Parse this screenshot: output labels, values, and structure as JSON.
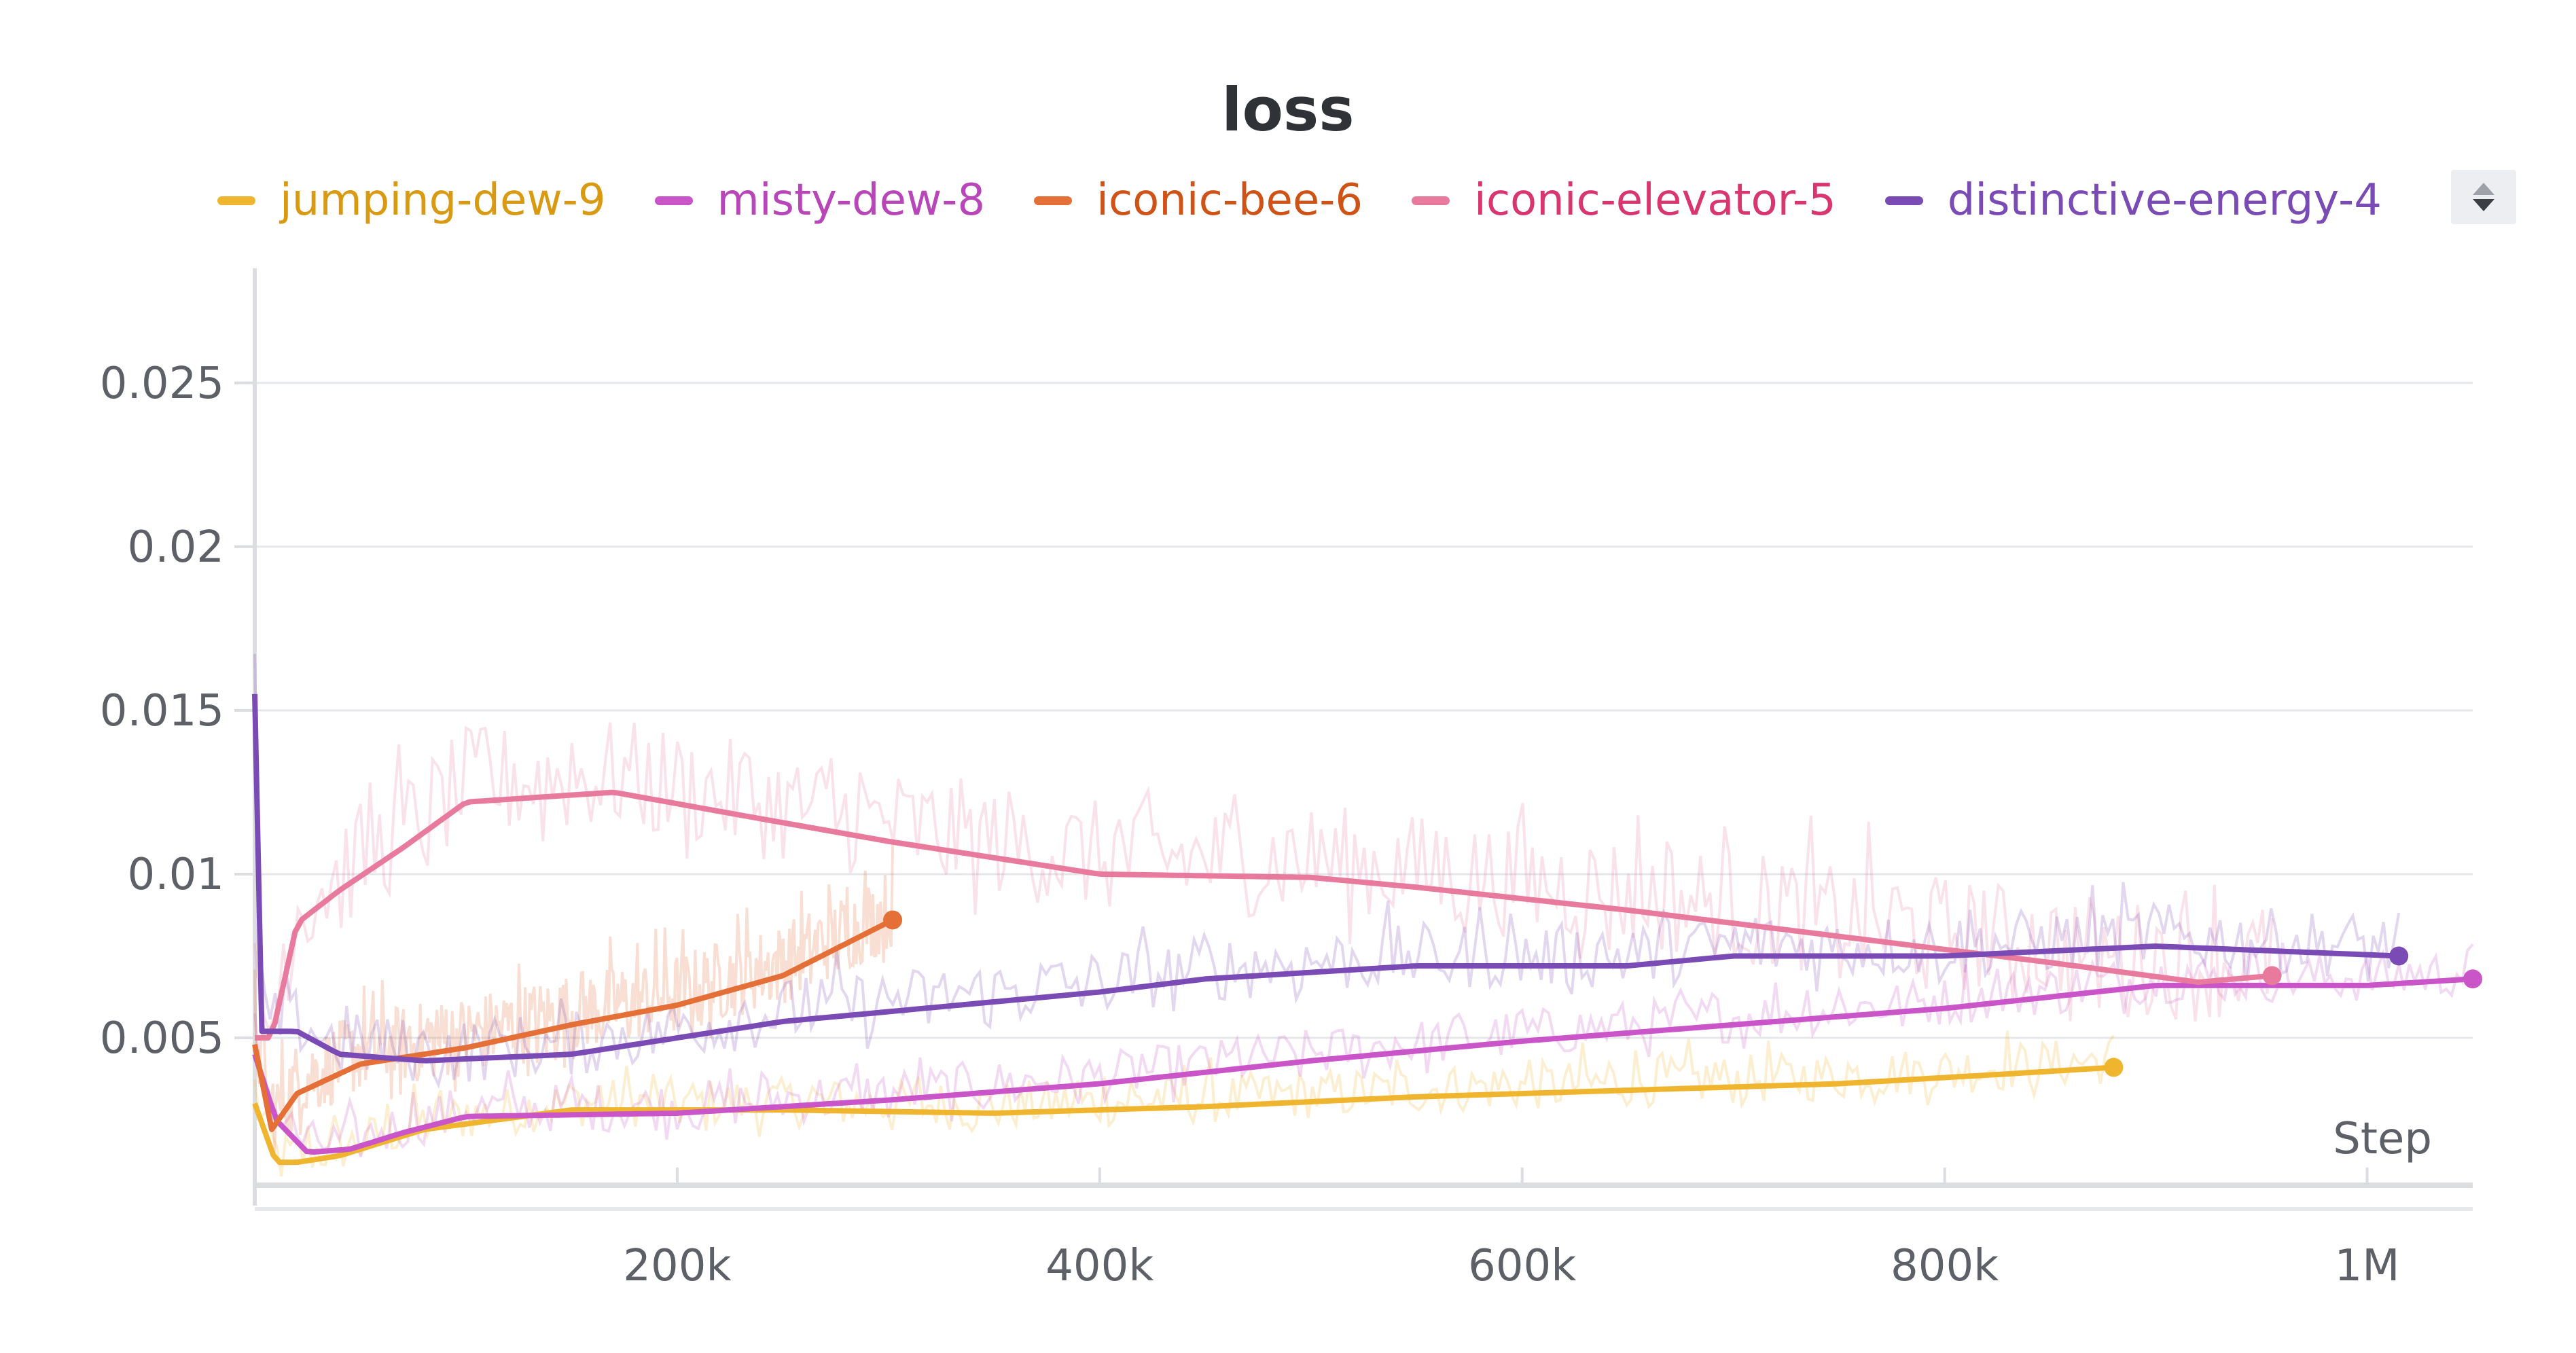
{
  "chart_data": {
    "type": "line",
    "title": "loss",
    "xlabel": "Step",
    "ylabel": "",
    "xlim": [
      0,
      1050000
    ],
    "ylim": [
      0.0005,
      0.0285
    ],
    "xticks": [
      200000,
      400000,
      600000,
      800000,
      1000000
    ],
    "xtick_labels": [
      "200k",
      "400k",
      "600k",
      "800k",
      "1M"
    ],
    "yticks": [
      0.005,
      0.01,
      0.015,
      0.02,
      0.025
    ],
    "ytick_labels": [
      "0.005",
      "0.01",
      "0.015",
      "0.02",
      "0.025"
    ],
    "grid": true,
    "legend_position": "top",
    "series": [
      {
        "name": "jumping-dew-9",
        "color": "#f0b52f",
        "text_color": "#d99a12",
        "x": [
          0,
          10000,
          20000,
          40000,
          80000,
          150000,
          250000,
          350000,
          450000,
          550000,
          650000,
          750000,
          830000,
          880000
        ],
        "y": [
          0.003,
          0.0012,
          0.0012,
          0.0014,
          0.0022,
          0.0028,
          0.0028,
          0.0027,
          0.0029,
          0.0032,
          0.0034,
          0.0036,
          0.0039,
          0.0041
        ],
        "raw_noise": 0.0015
      },
      {
        "name": "misty-dew-8",
        "color": "#c955c8",
        "text_color": "#b846b9",
        "x": [
          0,
          10000,
          25000,
          45000,
          70000,
          100000,
          200000,
          300000,
          400000,
          500000,
          600000,
          700000,
          800000,
          900000,
          1000000,
          1050000
        ],
        "y": [
          0.0045,
          0.0025,
          0.0015,
          0.0016,
          0.0021,
          0.0026,
          0.0027,
          0.0031,
          0.0036,
          0.0043,
          0.0049,
          0.0054,
          0.0059,
          0.0066,
          0.0066,
          0.0068
        ],
        "raw_noise": 0.0015
      },
      {
        "name": "iconic-bee-6",
        "color": "#e46f37",
        "text_color": "#cf5316",
        "x": [
          0,
          8000,
          20000,
          50000,
          100000,
          150000,
          200000,
          250000,
          302000
        ],
        "y": [
          0.0048,
          0.0022,
          0.0033,
          0.0042,
          0.0047,
          0.0054,
          0.006,
          0.0069,
          0.0086
        ],
        "raw_noise": 0.0025
      },
      {
        "name": "iconic-elevator-5",
        "color": "#e87a9e",
        "text_color": "#d9356f",
        "x": [
          0,
          8000,
          20000,
          40000,
          70000,
          100000,
          170000,
          230000,
          300000,
          400000,
          500000,
          550000,
          650000,
          750000,
          850000,
          920000,
          955000
        ],
        "y": [
          0.005,
          0.005,
          0.0085,
          0.0095,
          0.0108,
          0.0122,
          0.0125,
          0.0118,
          0.011,
          0.01,
          0.0099,
          0.0096,
          0.0089,
          0.0081,
          0.0073,
          0.0067,
          0.0069
        ],
        "raw_noise": 0.0035
      },
      {
        "name": "distinctive-energy-4",
        "color": "#7b4bb5",
        "text_color": "#7b4bb5",
        "x": [
          0,
          3000,
          8000,
          20000,
          40000,
          80000,
          150000,
          250000,
          300000,
          400000,
          450000,
          550000,
          650000,
          700000,
          800000,
          900000,
          1015000
        ],
        "y": [
          0.0155,
          0.0052,
          0.0052,
          0.0052,
          0.0045,
          0.0043,
          0.0045,
          0.0055,
          0.0058,
          0.0064,
          0.0068,
          0.0072,
          0.0072,
          0.0075,
          0.0075,
          0.0078,
          0.0075
        ],
        "raw_noise": 0.002
      }
    ]
  }
}
